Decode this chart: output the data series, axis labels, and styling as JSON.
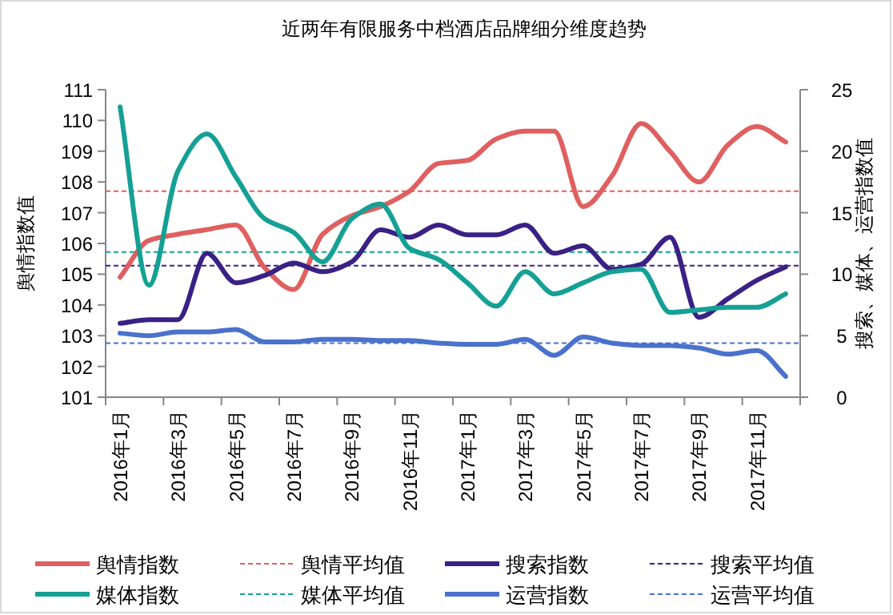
{
  "chart_data": {
    "type": "line",
    "title": "近两年有限服务中档酒店品牌细分维度趋势",
    "ylabel": "舆情指数值",
    "y2label": "搜索、媒体、运营指数值",
    "categories": [
      "2016年1月",
      null,
      "2016年3月",
      null,
      "2016年5月",
      null,
      "2016年7月",
      null,
      "2016年9月",
      null,
      "2016年11月",
      null,
      "2017年1月",
      null,
      "2017年3月",
      null,
      "2017年5月",
      null,
      "2017年7月",
      null,
      "2017年9月",
      null,
      "2017年11月",
      null
    ],
    "ylim": [
      101,
      111
    ],
    "yticks": [
      101,
      102,
      103,
      104,
      105,
      106,
      107,
      108,
      109,
      110,
      111
    ],
    "y2lim": [
      0,
      25
    ],
    "y2ticks": [
      0,
      5,
      10,
      15,
      20,
      25
    ],
    "grid": false,
    "legend": "bottom",
    "marker": "none",
    "line_style": "solid",
    "series": [
      {
        "name": "舆情指数",
        "color": "#e05f5f",
        "axis": "y",
        "values": [
          104.9,
          106.1,
          106.3,
          106.45,
          106.6,
          105.2,
          104.5,
          106.3,
          106.9,
          107.2,
          107.7,
          108.6,
          108.7,
          109.4,
          109.65,
          109.65,
          107.2,
          108.2,
          109.9,
          109.0,
          108.0,
          109.2,
          109.8,
          109.3
        ]
      },
      {
        "name": "搜索指数",
        "color": "#3a2185",
        "axis": "y2",
        "values": [
          6.0,
          6.3,
          6.3,
          11.7,
          9.3,
          9.9,
          10.9,
          10.2,
          11.0,
          13.6,
          13.0,
          14.0,
          13.2,
          13.2,
          14.0,
          11.7,
          12.3,
          10.4,
          10.8,
          13.0,
          6.5,
          8.0,
          9.5,
          10.6
        ]
      },
      {
        "name": "媒体指数",
        "color": "#15a095",
        "axis": "y2",
        "values": [
          23.6,
          9.1,
          18.4,
          21.4,
          17.9,
          14.5,
          13.4,
          11.0,
          14.5,
          15.7,
          12.1,
          11.2,
          9.3,
          7.4,
          10.2,
          8.4,
          9.3,
          10.2,
          10.4,
          6.9,
          7.1,
          7.3,
          7.3,
          8.4
        ]
      },
      {
        "name": "运营指数",
        "color": "#4a72cc",
        "axis": "y2",
        "values": [
          5.2,
          5.0,
          5.3,
          5.3,
          5.5,
          4.5,
          4.5,
          4.7,
          4.7,
          4.6,
          4.6,
          4.4,
          4.3,
          4.3,
          4.7,
          3.4,
          4.9,
          4.4,
          4.2,
          4.2,
          4.0,
          3.5,
          3.8,
          1.7
        ]
      }
    ],
    "ref_lines": [
      {
        "axis": "y",
        "value": 107.7,
        "label": "舆情平均值",
        "color": "#e05f5f",
        "line_style": "dashed"
      },
      {
        "axis": "y2",
        "value": 10.7,
        "label": "搜索平均值",
        "color": "#3a2185",
        "line_style": "dashed"
      },
      {
        "axis": "y2",
        "value": 11.8,
        "label": "媒体平均值",
        "color": "#15a095",
        "line_style": "dashed"
      },
      {
        "axis": "y2",
        "value": 4.4,
        "label": "运营平均值",
        "color": "#4a72cc",
        "line_style": "dashed"
      }
    ]
  }
}
